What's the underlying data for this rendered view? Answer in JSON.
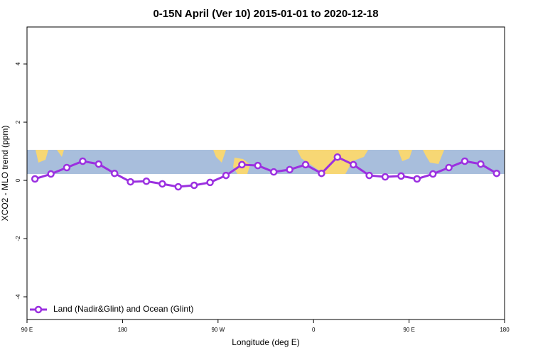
{
  "chart_data": {
    "type": "line",
    "title": "0-15N April (Ver 10)   2015-01-01 to 2020-12-18",
    "x_label": "Longitude (deg E)",
    "y_label": "XCO2 - MLO trend (ppm)",
    "x": [
      -262.5,
      -247.5,
      -232.5,
      -217.5,
      -202.5,
      -187.5,
      -172.5,
      -157.5,
      -142.5,
      -127.5,
      -112.5,
      -97.5,
      -82.5,
      -67.5,
      -52.5,
      -37.5,
      -22.5,
      -7.5,
      7.5,
      22.5,
      37.5,
      52.5,
      67.5,
      82.5,
      97.5,
      112.5,
      127.5,
      142.5,
      157.5,
      172.5
    ],
    "series": [
      {
        "name": "Land (Nadir&Glint) and Ocean (Glint)",
        "color": "#9b30e0",
        "values": [
          0.05,
          0.22,
          0.44,
          0.66,
          0.56,
          0.24,
          -0.05,
          -0.03,
          -0.12,
          -0.22,
          -0.17,
          -0.07,
          0.17,
          0.54,
          0.51,
          0.29,
          0.37,
          0.54,
          0.24,
          0.8,
          0.54,
          0.17,
          0.12,
          0.15,
          0.05,
          0.22,
          0.44,
          0.66,
          0.56,
          0.24
        ]
      }
    ],
    "xlim": [
      -270,
      180
    ],
    "xticks": [
      {
        "value": -270,
        "label": "90 E"
      },
      {
        "value": -180,
        "label": "180"
      },
      {
        "value": -90,
        "label": "90 W"
      },
      0,
      {
        "value": 90,
        "label": "90 E"
      },
      180
    ],
    "ylim": [
      -4.78,
      5.27
    ],
    "yticks": [
      -4,
      -2,
      0,
      2,
      4
    ],
    "legend": "bottom-left"
  }
}
